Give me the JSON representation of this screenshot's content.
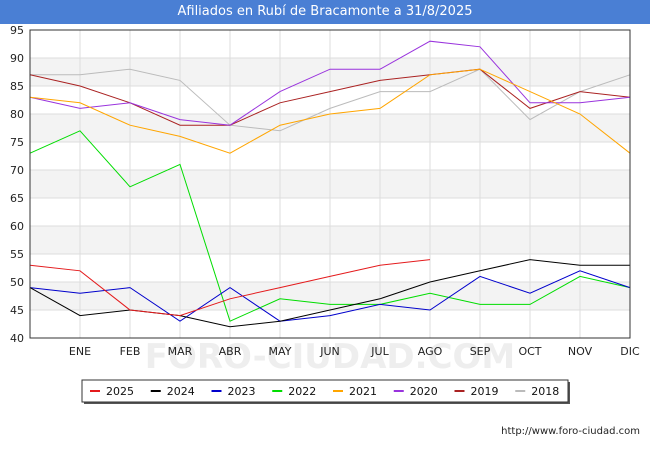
{
  "chart_data": {
    "type": "line",
    "title": "Afiliados en Rubí de Bracamonte a 31/8/2025",
    "categories": [
      "",
      "ENE",
      "FEB",
      "MAR",
      "ABR",
      "MAY",
      "JUN",
      "JUL",
      "AGO",
      "SEP",
      "OCT",
      "NOV",
      "DIC"
    ],
    "ylim": [
      40,
      95
    ],
    "yticks": [
      40,
      45,
      50,
      55,
      60,
      65,
      70,
      75,
      80,
      85,
      90,
      95
    ],
    "grid": true,
    "legend_position": "bottom",
    "series": [
      {
        "name": "2025",
        "color": "#e41a1c",
        "values": [
          53,
          52,
          45,
          44,
          47,
          49,
          51,
          53,
          54,
          null,
          null,
          null,
          null
        ]
      },
      {
        "name": "2024",
        "color": "#000000",
        "values": [
          49,
          44,
          45,
          44,
          42,
          43,
          45,
          47,
          50,
          52,
          54,
          53,
          53
        ]
      },
      {
        "name": "2023",
        "color": "#0000cc",
        "values": [
          49,
          48,
          49,
          43,
          49,
          43,
          44,
          46,
          45,
          51,
          48,
          52,
          49
        ]
      },
      {
        "name": "2022",
        "color": "#00dd00",
        "values": [
          73,
          77,
          67,
          71,
          43,
          47,
          46,
          46,
          48,
          46,
          46,
          51,
          49
        ]
      },
      {
        "name": "2021",
        "color": "#ffa500",
        "values": [
          83,
          82,
          78,
          76,
          73,
          78,
          80,
          81,
          87,
          88,
          84,
          80,
          73
        ]
      },
      {
        "name": "2020",
        "color": "#9933dd",
        "values": [
          83,
          81,
          82,
          79,
          78,
          84,
          88,
          88,
          93,
          92,
          82,
          82,
          83
        ]
      },
      {
        "name": "2019",
        "color": "#aa2222",
        "values": [
          87,
          85,
          82,
          78,
          78,
          82,
          84,
          86,
          87,
          88,
          81,
          84,
          83
        ]
      },
      {
        "name": "2018",
        "color": "#bbbbbb",
        "values": [
          87,
          87,
          88,
          86,
          78,
          77,
          81,
          84,
          84,
          88,
          79,
          84,
          87
        ]
      }
    ]
  },
  "source": "http://www.foro-ciudad.com",
  "watermark": "FORO-CIUDAD.COM"
}
